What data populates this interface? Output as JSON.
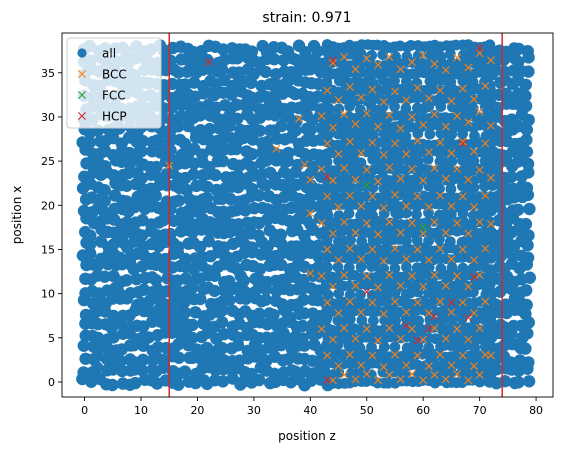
{
  "chart_data": {
    "type": "scatter",
    "title": "strain: 0.971",
    "xlabel": "position z",
    "ylabel": "position x",
    "xlim": [
      -4,
      83
    ],
    "ylim": [
      -1.7,
      39.5
    ],
    "xticks": [
      0,
      10,
      20,
      30,
      40,
      50,
      60,
      70,
      80
    ],
    "yticks": [
      0,
      5,
      10,
      15,
      20,
      25,
      30,
      35
    ],
    "grid": false,
    "legend_position": "top-left",
    "vlines": {
      "color": "#d62728",
      "x": [
        15,
        74
      ]
    },
    "all_points": {
      "name": "all",
      "color": "#1f77b4",
      "description_fill_regions": [
        {
          "x_from": 0,
          "x_to": 43,
          "y_from": 0,
          "y_to": 38,
          "pattern": "dense"
        },
        {
          "x_from": 43,
          "x_to": 72,
          "y_from": 0,
          "y_to": 38,
          "pattern": "lattice"
        },
        {
          "x_from": 72,
          "x_to": 79,
          "y_from": 0,
          "y_to": 38,
          "pattern": "dense"
        }
      ]
    },
    "series": [
      {
        "name": "BCC",
        "marker": "x",
        "color": "#ff7f0e",
        "points": [
          [
            15,
            24.5
          ],
          [
            34,
            26.4
          ],
          [
            38,
            29.8
          ],
          [
            39,
            24.6
          ],
          [
            40,
            22.9
          ],
          [
            40,
            19.1
          ],
          [
            40,
            12.3
          ],
          [
            44,
            36.1
          ],
          [
            46,
            36.8
          ],
          [
            48,
            35.4
          ],
          [
            50,
            36.6
          ],
          [
            52,
            35.9
          ],
          [
            54,
            36.8
          ],
          [
            56,
            35.4
          ],
          [
            58,
            36.2
          ],
          [
            60,
            37.0
          ],
          [
            62,
            36.0
          ],
          [
            64,
            35.3
          ],
          [
            66,
            36.7
          ],
          [
            68,
            35.6
          ],
          [
            70,
            37.2
          ],
          [
            72,
            36.4
          ],
          [
            43,
            33.0
          ],
          [
            45,
            31.9
          ],
          [
            47,
            33.4
          ],
          [
            49,
            32.2
          ],
          [
            51,
            33.1
          ],
          [
            53,
            31.7
          ],
          [
            55,
            32.9
          ],
          [
            57,
            31.9
          ],
          [
            59,
            33.3
          ],
          [
            61,
            32.1
          ],
          [
            63,
            33.0
          ],
          [
            65,
            31.8
          ],
          [
            67,
            33.2
          ],
          [
            69,
            32.0
          ],
          [
            71,
            33.5
          ],
          [
            42,
            30.1
          ],
          [
            44,
            28.8
          ],
          [
            46,
            30.3
          ],
          [
            48,
            29.2
          ],
          [
            50,
            30.4
          ],
          [
            52,
            28.9
          ],
          [
            54,
            30.2
          ],
          [
            56,
            28.7
          ],
          [
            58,
            30.0
          ],
          [
            60,
            29.1
          ],
          [
            62,
            30.3
          ],
          [
            64,
            28.9
          ],
          [
            66,
            30.1
          ],
          [
            68,
            29.4
          ],
          [
            70,
            30.6
          ],
          [
            72,
            29.0
          ],
          [
            43,
            27.0
          ],
          [
            45,
            25.8
          ],
          [
            47,
            27.2
          ],
          [
            49,
            25.9
          ],
          [
            51,
            27.1
          ],
          [
            53,
            25.7
          ],
          [
            55,
            27.0
          ],
          [
            57,
            25.8
          ],
          [
            59,
            27.3
          ],
          [
            61,
            26.0
          ],
          [
            63,
            27.1
          ],
          [
            65,
            25.9
          ],
          [
            67,
            27.2
          ],
          [
            69,
            26.1
          ],
          [
            71,
            27.0
          ],
          [
            42,
            24.1
          ],
          [
            44,
            22.8
          ],
          [
            46,
            24.2
          ],
          [
            48,
            22.9
          ],
          [
            50,
            24.0
          ],
          [
            52,
            22.7
          ],
          [
            54,
            24.3
          ],
          [
            56,
            23.0
          ],
          [
            58,
            24.1
          ],
          [
            60,
            22.8
          ],
          [
            62,
            24.2
          ],
          [
            64,
            23.0
          ],
          [
            66,
            24.1
          ],
          [
            68,
            22.9
          ],
          [
            70,
            24.0
          ],
          [
            72,
            23.1
          ],
          [
            43,
            21.0
          ],
          [
            45,
            19.8
          ],
          [
            47,
            21.1
          ],
          [
            49,
            19.9
          ],
          [
            51,
            21.0
          ],
          [
            53,
            19.7
          ],
          [
            55,
            21.2
          ],
          [
            57,
            19.9
          ],
          [
            59,
            21.0
          ],
          [
            61,
            19.8
          ],
          [
            63,
            21.1
          ],
          [
            65,
            19.9
          ],
          [
            67,
            21.0
          ],
          [
            69,
            19.8
          ],
          [
            71,
            21.1
          ],
          [
            42,
            18.0
          ],
          [
            44,
            16.8
          ],
          [
            46,
            18.1
          ],
          [
            48,
            16.9
          ],
          [
            50,
            18.0
          ],
          [
            52,
            16.7
          ],
          [
            54,
            18.1
          ],
          [
            56,
            16.9
          ],
          [
            58,
            18.0
          ],
          [
            60,
            16.8
          ],
          [
            62,
            18.1
          ],
          [
            64,
            16.9
          ],
          [
            66,
            18.0
          ],
          [
            68,
            16.8
          ],
          [
            70,
            18.1
          ],
          [
            72,
            17.9
          ],
          [
            43,
            15.0
          ],
          [
            45,
            13.8
          ],
          [
            47,
            15.1
          ],
          [
            49,
            13.9
          ],
          [
            51,
            15.0
          ],
          [
            53,
            13.7
          ],
          [
            55,
            15.1
          ],
          [
            57,
            13.9
          ],
          [
            59,
            15.0
          ],
          [
            61,
            13.8
          ],
          [
            63,
            15.1
          ],
          [
            65,
            13.9
          ],
          [
            67,
            15.0
          ],
          [
            69,
            13.8
          ],
          [
            71,
            15.1
          ],
          [
            42,
            12.0
          ],
          [
            44,
            10.8
          ],
          [
            46,
            12.1
          ],
          [
            48,
            10.9
          ],
          [
            50,
            12.0
          ],
          [
            52,
            10.7
          ],
          [
            54,
            12.1
          ],
          [
            56,
            10.9
          ],
          [
            58,
            12.0
          ],
          [
            60,
            10.8
          ],
          [
            62,
            12.1
          ],
          [
            64,
            10.9
          ],
          [
            66,
            12.0
          ],
          [
            68,
            10.8
          ],
          [
            70,
            12.1
          ],
          [
            43,
            9.0
          ],
          [
            45,
            7.8
          ],
          [
            47,
            9.1
          ],
          [
            49,
            7.9
          ],
          [
            51,
            9.0
          ],
          [
            53,
            7.7
          ],
          [
            55,
            9.1
          ],
          [
            57,
            7.9
          ],
          [
            59,
            9.0
          ],
          [
            61,
            7.8
          ],
          [
            63,
            9.1
          ],
          [
            65,
            7.9
          ],
          [
            67,
            9.0
          ],
          [
            69,
            7.8
          ],
          [
            71,
            9.1
          ],
          [
            42,
            6.0
          ],
          [
            44,
            4.8
          ],
          [
            46,
            6.1
          ],
          [
            48,
            4.9
          ],
          [
            50,
            6.0
          ],
          [
            52,
            4.7
          ],
          [
            54,
            6.1
          ],
          [
            56,
            4.9
          ],
          [
            58,
            6.0
          ],
          [
            60,
            4.8
          ],
          [
            62,
            6.1
          ],
          [
            64,
            4.9
          ],
          [
            66,
            6.0
          ],
          [
            68,
            4.8
          ],
          [
            70,
            6.1
          ],
          [
            72,
            3.0
          ],
          [
            43,
            3.0
          ],
          [
            45,
            1.8
          ],
          [
            47,
            3.1
          ],
          [
            49,
            1.9
          ],
          [
            51,
            3.0
          ],
          [
            53,
            1.7
          ],
          [
            55,
            3.1
          ],
          [
            57,
            1.9
          ],
          [
            59,
            3.0
          ],
          [
            61,
            1.8
          ],
          [
            63,
            3.1
          ],
          [
            65,
            1.9
          ],
          [
            67,
            3.0
          ],
          [
            69,
            1.8
          ],
          [
            71,
            3.1
          ],
          [
            44,
            0.2
          ],
          [
            46,
            0.8
          ],
          [
            48,
            0.3
          ],
          [
            50,
            0.9
          ],
          [
            52,
            0.2
          ],
          [
            54,
            0.8
          ],
          [
            56,
            0.3
          ],
          [
            58,
            0.9
          ],
          [
            60,
            0.2
          ],
          [
            62,
            0.8
          ],
          [
            64,
            0.3
          ],
          [
            66,
            0.9
          ],
          [
            68,
            0.2
          ],
          [
            70,
            0.8
          ]
        ]
      },
      {
        "name": "FCC",
        "marker": "x",
        "color": "#2ca02c",
        "points": [
          [
            50,
            22.3
          ],
          [
            60,
            17.5
          ]
        ]
      },
      {
        "name": "HCP",
        "marker": "x",
        "color": "#d62728",
        "points": [
          [
            22,
            36.2
          ],
          [
            44,
            36.4
          ],
          [
            70,
            37.8
          ],
          [
            43,
            23.2
          ],
          [
            67,
            27.0
          ],
          [
            43,
            0.2
          ],
          [
            50,
            10.2
          ],
          [
            57,
            6.4
          ],
          [
            59,
            4.7
          ],
          [
            61,
            6.0
          ],
          [
            62,
            7.4
          ],
          [
            65,
            9.0
          ],
          [
            68,
            7.3
          ],
          [
            69,
            11.9
          ]
        ]
      }
    ]
  }
}
